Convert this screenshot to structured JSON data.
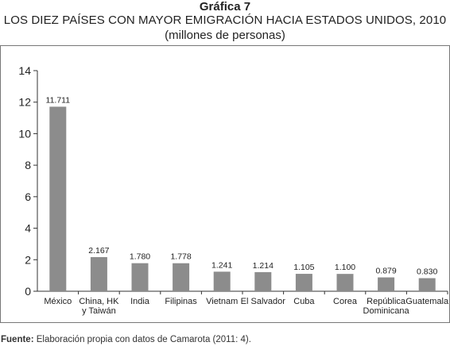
{
  "header": {
    "label": "Gráfica 7",
    "title": "LOS DIEZ PAÍSES CON MAYOR EMIGRACIÓN HACIA ESTADOS UNIDOS, 2010",
    "subtitle": "(millones de personas)"
  },
  "source": {
    "prefix": "Fuente:",
    "text": " Elaboración propia con datos de Camarota (2011: 4)."
  },
  "colors": {
    "bar": "#8c8c8c",
    "axis": "#333333",
    "text": "#222222"
  },
  "chart_data": {
    "type": "bar",
    "title": "LOS DIEZ PAÍSES CON MAYOR EMIGRACIÓN HACIA ESTADOS UNIDOS, 2010",
    "subtitle": "(millones de personas)",
    "categories": [
      [
        "México"
      ],
      [
        "China, HK",
        "y Taiwán"
      ],
      [
        "India"
      ],
      [
        "Filipinas"
      ],
      [
        "Vietnam"
      ],
      [
        "El Salvador"
      ],
      [
        "Cuba"
      ],
      [
        "Corea"
      ],
      [
        "República",
        "Dominicana"
      ],
      [
        "Guatemala"
      ]
    ],
    "values": [
      11.711,
      2.167,
      1.78,
      1.778,
      1.241,
      1.214,
      1.105,
      1.1,
      0.879,
      0.83
    ],
    "value_labels": [
      "11.711",
      "2.167",
      "1.780",
      "1.778",
      "1.241",
      "1.214",
      "1.105",
      "1.100",
      "0.879",
      "0.830"
    ],
    "ylim": [
      0,
      14
    ],
    "yticks": [
      0,
      2,
      4,
      6,
      8,
      10,
      12,
      14
    ],
    "xlabel": "",
    "ylabel": "",
    "grid": false,
    "legend": "none"
  }
}
